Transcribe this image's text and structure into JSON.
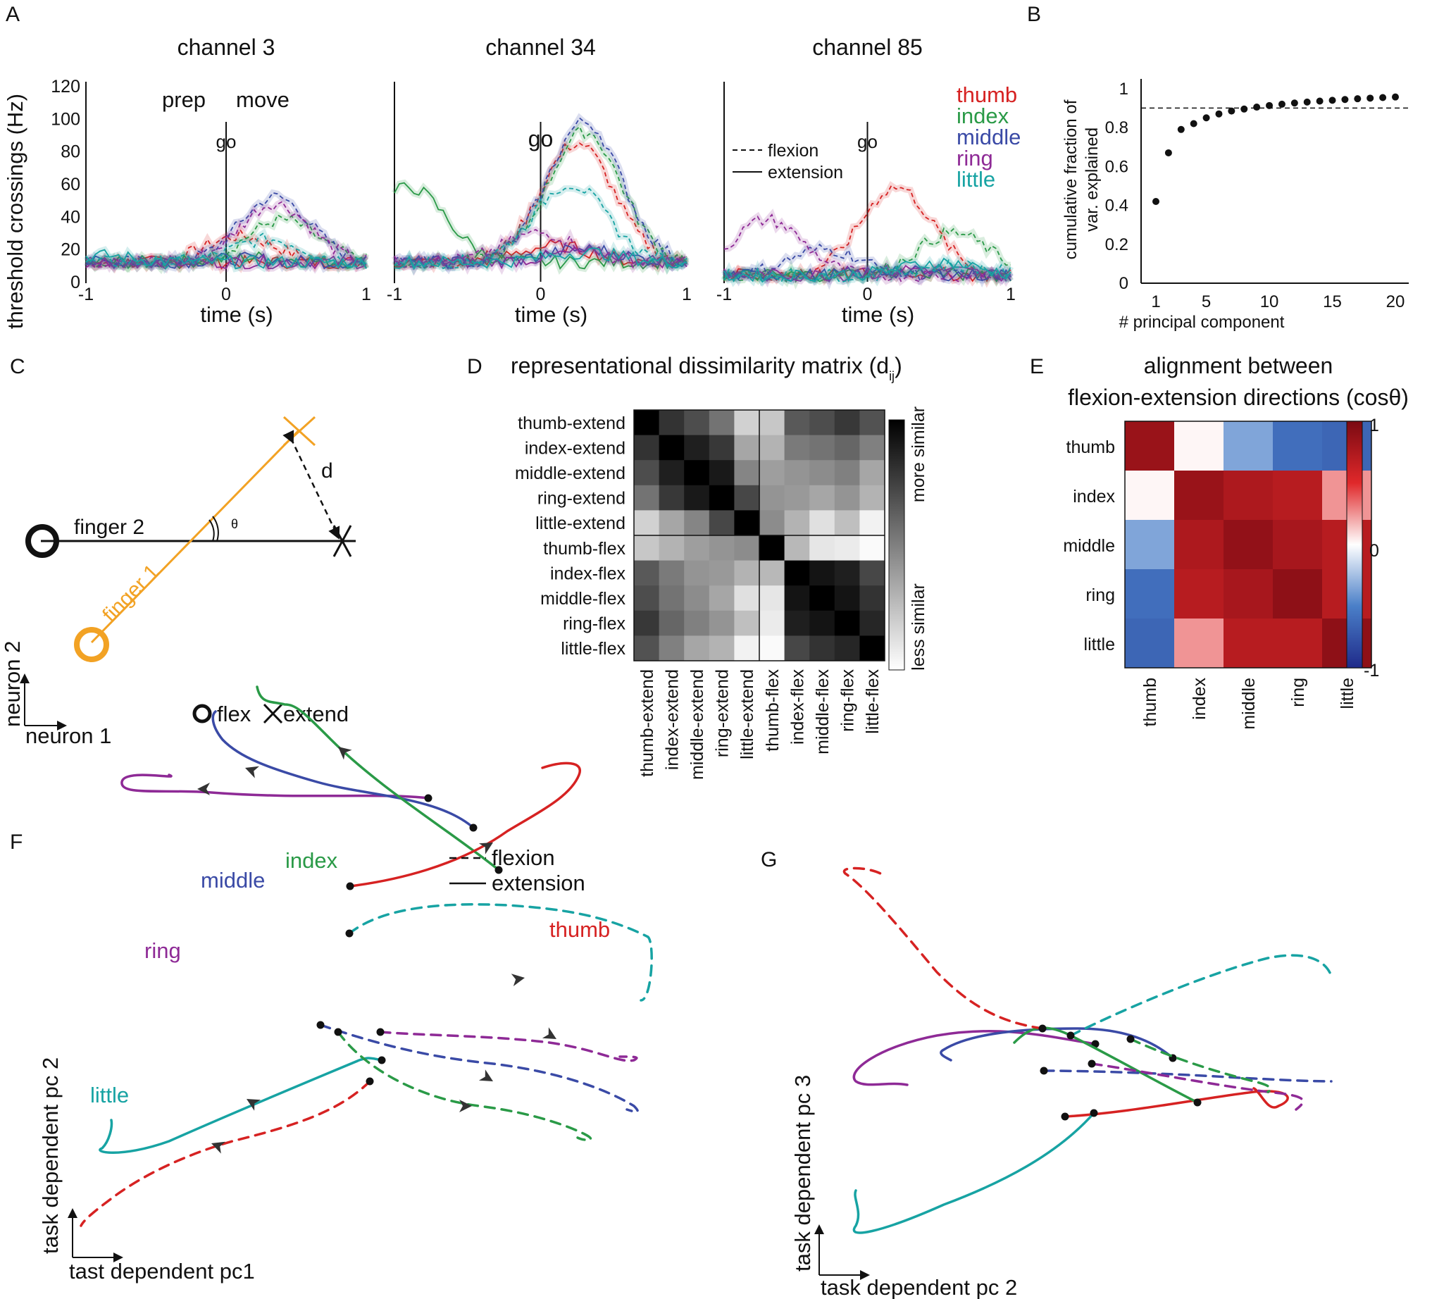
{
  "panel_letters": {
    "a": "A",
    "b": "B",
    "c": "C",
    "d": "D",
    "e": "E",
    "f": "F",
    "g": "G"
  },
  "colors": {
    "thumb": "#d62222",
    "index": "#2a9a47",
    "middle": "#3a4aa6",
    "ring": "#8e2a96",
    "little": "#17a3a3",
    "orange": "#f2a224",
    "dark": "#111111"
  },
  "legend": {
    "fingers": [
      "thumb",
      "index",
      "middle",
      "ring",
      "little"
    ],
    "flexion": "flexion",
    "extension": "extension"
  },
  "panelA": {
    "xlabel": "time (s)",
    "ylabel": "threshold crossings (Hz)",
    "prep": "prep",
    "move": "move",
    "go": "go",
    "channels": [
      {
        "title": "channel 3",
        "ylim": [
          0,
          120
        ],
        "yticks": [
          "0",
          "20",
          "40",
          "60",
          "80",
          "100",
          "120"
        ],
        "peaks": {
          "thumb": {
            "flex": [
              28,
              0.1
            ],
            "ext": [
              12,
              0.2
            ]
          },
          "index": {
            "flex": [
              38,
              0.4
            ],
            "ext": [
              15,
              0.2
            ]
          },
          "middle": {
            "flex": [
              52,
              0.35
            ],
            "ext": [
              14,
              0.1
            ]
          },
          "ring": {
            "flex": [
              48,
              0.35
            ],
            "ext": [
              12,
              0.1
            ]
          },
          "little": {
            "flex": [
              26,
              0.3
            ],
            "ext": [
              16,
              -0.9
            ]
          }
        }
      },
      {
        "title": "channel 34",
        "ylim": [
          0,
          120
        ],
        "peaks": {
          "thumb": {
            "flex": [
              85,
              0.25
            ],
            "ext": [
              22,
              0.1
            ]
          },
          "index": {
            "flex": [
              92,
              0.3
            ],
            "ext": [
              58,
              -0.9
            ]
          },
          "middle": {
            "flex": [
              98,
              0.3
            ],
            "ext": [
              20,
              0.3
            ]
          },
          "ring": {
            "flex": [
              30,
              0.0
            ],
            "ext": [
              18,
              0.3
            ]
          },
          "little": {
            "flex": [
              60,
              0.2
            ],
            "ext": [
              18,
              0.3
            ]
          }
        }
      },
      {
        "title": "channel 85",
        "ylim": [
          0,
          120
        ],
        "peaks": {
          "thumb": {
            "flex": [
              58,
              0.2
            ],
            "ext": [
              6,
              0.2
            ]
          },
          "index": {
            "flex": [
              30,
              0.6
            ],
            "ext": [
              6,
              0.2
            ]
          },
          "middle": {
            "flex": [
              20,
              -0.3
            ],
            "ext": [
              6,
              0.2
            ]
          },
          "ring": {
            "flex": [
              38,
              -0.7
            ],
            "ext": [
              8,
              0.4
            ]
          },
          "little": {
            "flex": [
              10,
              0.6
            ],
            "ext": [
              12,
              0.5
            ]
          }
        }
      }
    ],
    "xticks": [
      "-1",
      "0",
      "1"
    ]
  },
  "panelB": {
    "xlabel": "# principal component",
    "ylabel_1": "cumulative fraction of",
    "ylabel_2": "var. explained",
    "threshold": 0.9,
    "xticks": [
      "1",
      "5",
      "10",
      "15",
      "20"
    ],
    "yticks": [
      "0",
      "0.2",
      "0.4",
      "0.6",
      "0.8",
      "1"
    ]
  },
  "chart_data": [
    {
      "type": "line",
      "title": "channel 3",
      "xlabel": "time (s)",
      "ylabel": "threshold crossings (Hz)",
      "xlim": [
        -1,
        1
      ],
      "ylim": [
        0,
        120
      ],
      "series_note": "flexion (dashed) and extension (solid) per finger"
    },
    {
      "type": "line",
      "title": "channel 34",
      "xlabel": "time (s)",
      "xlim": [
        -1,
        1
      ],
      "ylim": [
        0,
        120
      ]
    },
    {
      "type": "line",
      "title": "channel 85",
      "xlabel": "time (s)",
      "xlim": [
        -1,
        1
      ],
      "ylim": [
        0,
        120
      ]
    },
    {
      "type": "scatter",
      "xlabel": "# principal component",
      "ylabel": "cumulative fraction of var. explained",
      "x": [
        1,
        2,
        3,
        4,
        5,
        6,
        7,
        8,
        9,
        10,
        11,
        12,
        13,
        14,
        15,
        16,
        17,
        18,
        19,
        20
      ],
      "y": [
        0.42,
        0.67,
        0.79,
        0.82,
        0.85,
        0.87,
        0.885,
        0.895,
        0.905,
        0.913,
        0.92,
        0.926,
        0.931,
        0.936,
        0.94,
        0.944,
        0.948,
        0.951,
        0.954,
        0.957
      ],
      "xlim": [
        0,
        21
      ],
      "ylim": [
        0,
        1
      ],
      "reference_line": 0.9
    },
    {
      "type": "heatmap",
      "title": "representational dissimilarity matrix (dij)",
      "labels": [
        "thumb-extend",
        "index-extend",
        "middle-extend",
        "ring-extend",
        "little-extend",
        "thumb-flex",
        "index-flex",
        "middle-flex",
        "ring-flex",
        "little-flex"
      ],
      "similarity": [
        [
          1.0,
          0.8,
          0.7,
          0.55,
          0.18,
          0.22,
          0.65,
          0.7,
          0.78,
          0.68
        ],
        [
          0.8,
          1.0,
          0.88,
          0.78,
          0.35,
          0.3,
          0.52,
          0.55,
          0.6,
          0.5
        ],
        [
          0.7,
          0.88,
          1.0,
          0.9,
          0.48,
          0.38,
          0.42,
          0.45,
          0.5,
          0.35
        ],
        [
          0.55,
          0.78,
          0.9,
          1.0,
          0.72,
          0.42,
          0.4,
          0.35,
          0.42,
          0.3
        ],
        [
          0.18,
          0.35,
          0.48,
          0.72,
          1.0,
          0.45,
          0.3,
          0.12,
          0.25,
          0.05
        ],
        [
          0.22,
          0.3,
          0.38,
          0.42,
          0.45,
          1.0,
          0.28,
          0.1,
          0.08,
          0.02
        ],
        [
          0.65,
          0.52,
          0.42,
          0.4,
          0.3,
          0.28,
          1.0,
          0.92,
          0.88,
          0.72
        ],
        [
          0.7,
          0.55,
          0.45,
          0.35,
          0.12,
          0.1,
          0.92,
          1.0,
          0.92,
          0.8
        ],
        [
          0.78,
          0.6,
          0.5,
          0.42,
          0.25,
          0.08,
          0.88,
          0.92,
          1.0,
          0.85
        ],
        [
          0.68,
          0.5,
          0.35,
          0.3,
          0.05,
          0.02,
          0.72,
          0.8,
          0.85,
          1.0
        ]
      ]
    },
    {
      "type": "heatmap",
      "title": "alignment between flexion-extension directions (cosθ)",
      "labels": [
        "thumb",
        "index",
        "middle",
        "ring",
        "little"
      ],
      "values": [
        [
          0.85,
          0.02,
          -0.35,
          -0.6,
          -0.65
        ],
        [
          0.02,
          0.85,
          0.75,
          0.7,
          0.25
        ],
        [
          -0.35,
          0.75,
          0.88,
          0.78,
          0.7
        ],
        [
          -0.6,
          0.7,
          0.78,
          0.9,
          0.7
        ],
        [
          -0.65,
          0.25,
          0.7,
          0.7,
          0.9
        ]
      ],
      "clim": [
        -1,
        1
      ]
    }
  ],
  "panelC": {
    "finger1": "finger 1",
    "finger2": "finger 2",
    "d": "d",
    "theta": "θ",
    "neuron1": "neuron 1",
    "neuron2": "neuron 2",
    "flex": "flex",
    "extend": "extend"
  },
  "panelD": {
    "title_main": "representational dissimilarity matrix (d",
    "title_sub": "ij",
    "title_close": ")",
    "more": "more similar",
    "less": "less similar"
  },
  "panelE": {
    "title_1": "alignment between",
    "title_2": "flexion-extension directions (cosθ)",
    "cticks": [
      "1",
      "0",
      "-1"
    ]
  },
  "panelF": {
    "xlabel": "tast dependent pc1",
    "ylabel": "task dependent pc 2"
  },
  "panelG": {
    "xlabel": "task dependent pc 2",
    "ylabel": "task dependent pc 3"
  }
}
